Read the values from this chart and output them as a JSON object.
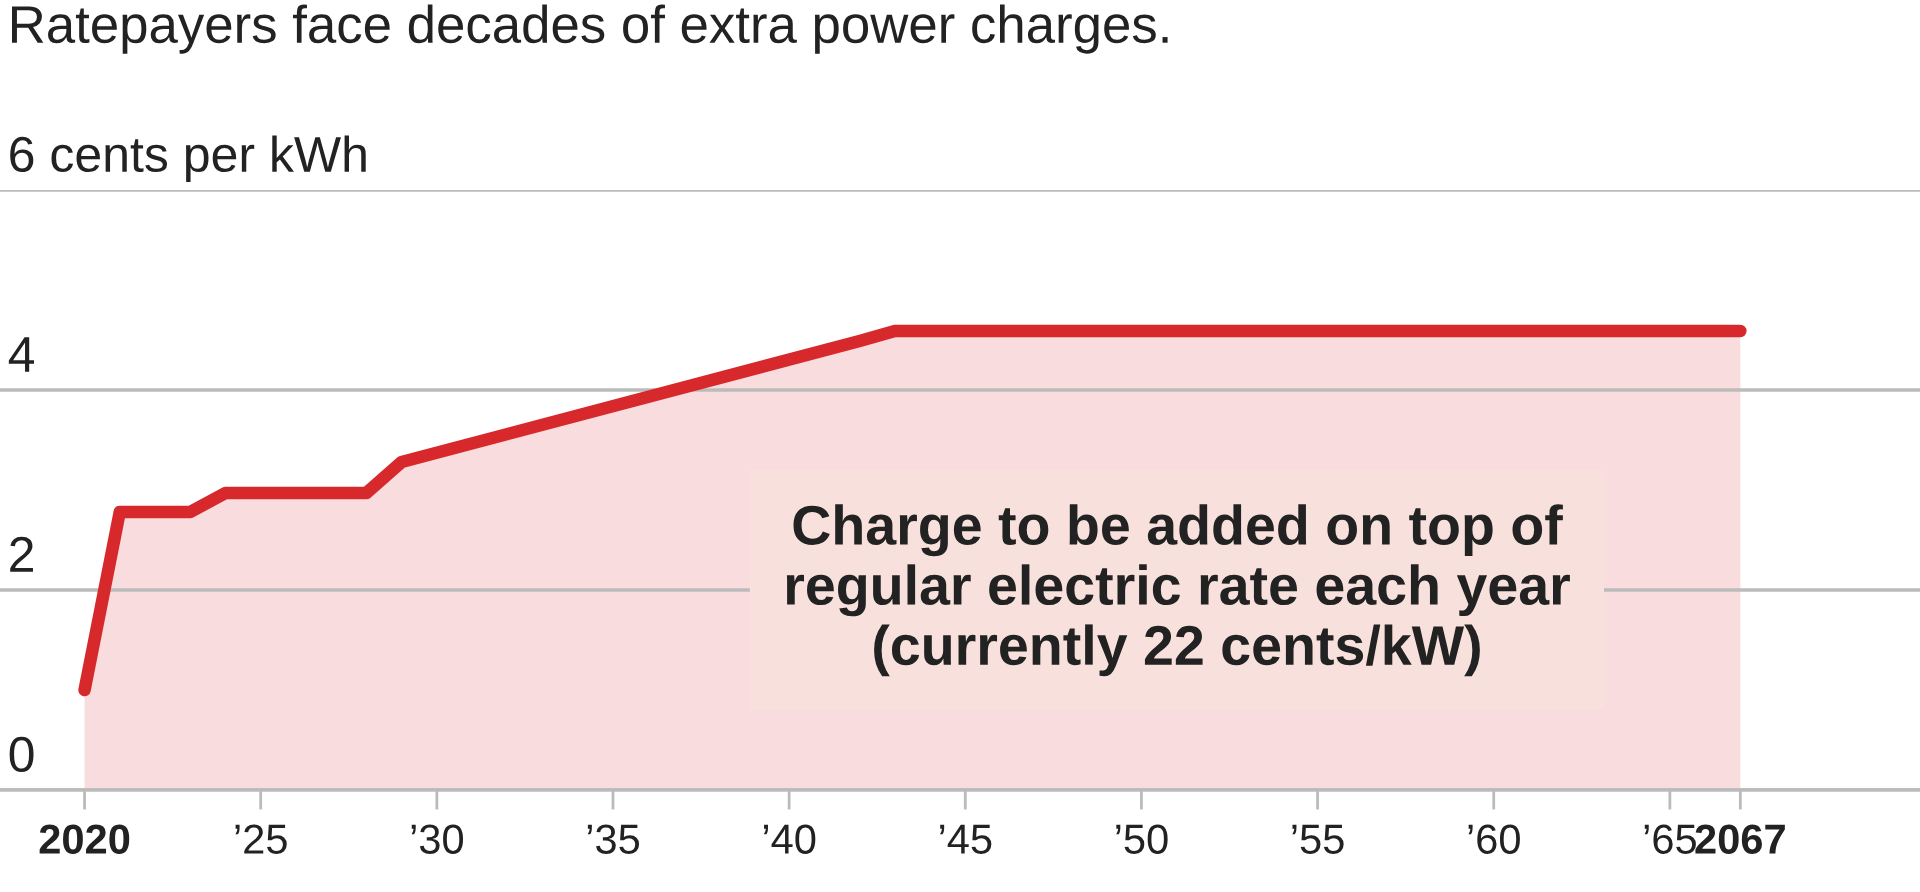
{
  "chart_data": {
    "type": "area",
    "title": "Ratepayers face decades of extra power charges.",
    "x": [
      2020,
      2021,
      2023,
      2024,
      2028,
      2029,
      2042,
      2043,
      2067
    ],
    "series": [
      {
        "color": "#d7282c",
        "values": [
          1.0,
          2.78,
          2.78,
          2.97,
          2.97,
          3.28,
          4.49,
          4.59,
          4.59
        ]
      }
    ],
    "xlim": [
      2017.6,
      2072.1
    ],
    "ylim": [
      0,
      6
    ],
    "xticks": [
      {
        "value": 2020,
        "label": "2020"
      },
      {
        "value": 2025,
        "label": "’25"
      },
      {
        "value": 2030,
        "label": "’30"
      },
      {
        "value": 2035,
        "label": "’35"
      },
      {
        "value": 2040,
        "label": "’40"
      },
      {
        "value": 2045,
        "label": "’45"
      },
      {
        "value": 2050,
        "label": "’50"
      },
      {
        "value": 2055,
        "label": "’55"
      },
      {
        "value": 2060,
        "label": "’60"
      },
      {
        "value": 2065,
        "label": "’65"
      },
      {
        "value": 2067,
        "label": "2067"
      }
    ],
    "yticks": [
      0,
      2,
      4,
      {
        "value": 6,
        "label": "6 cents per kWh"
      }
    ],
    "grid": "y",
    "annotations": [
      "Charge to be added on top of\nregular electric rate each year\n(currently 22 cents/kW)"
    ]
  }
}
